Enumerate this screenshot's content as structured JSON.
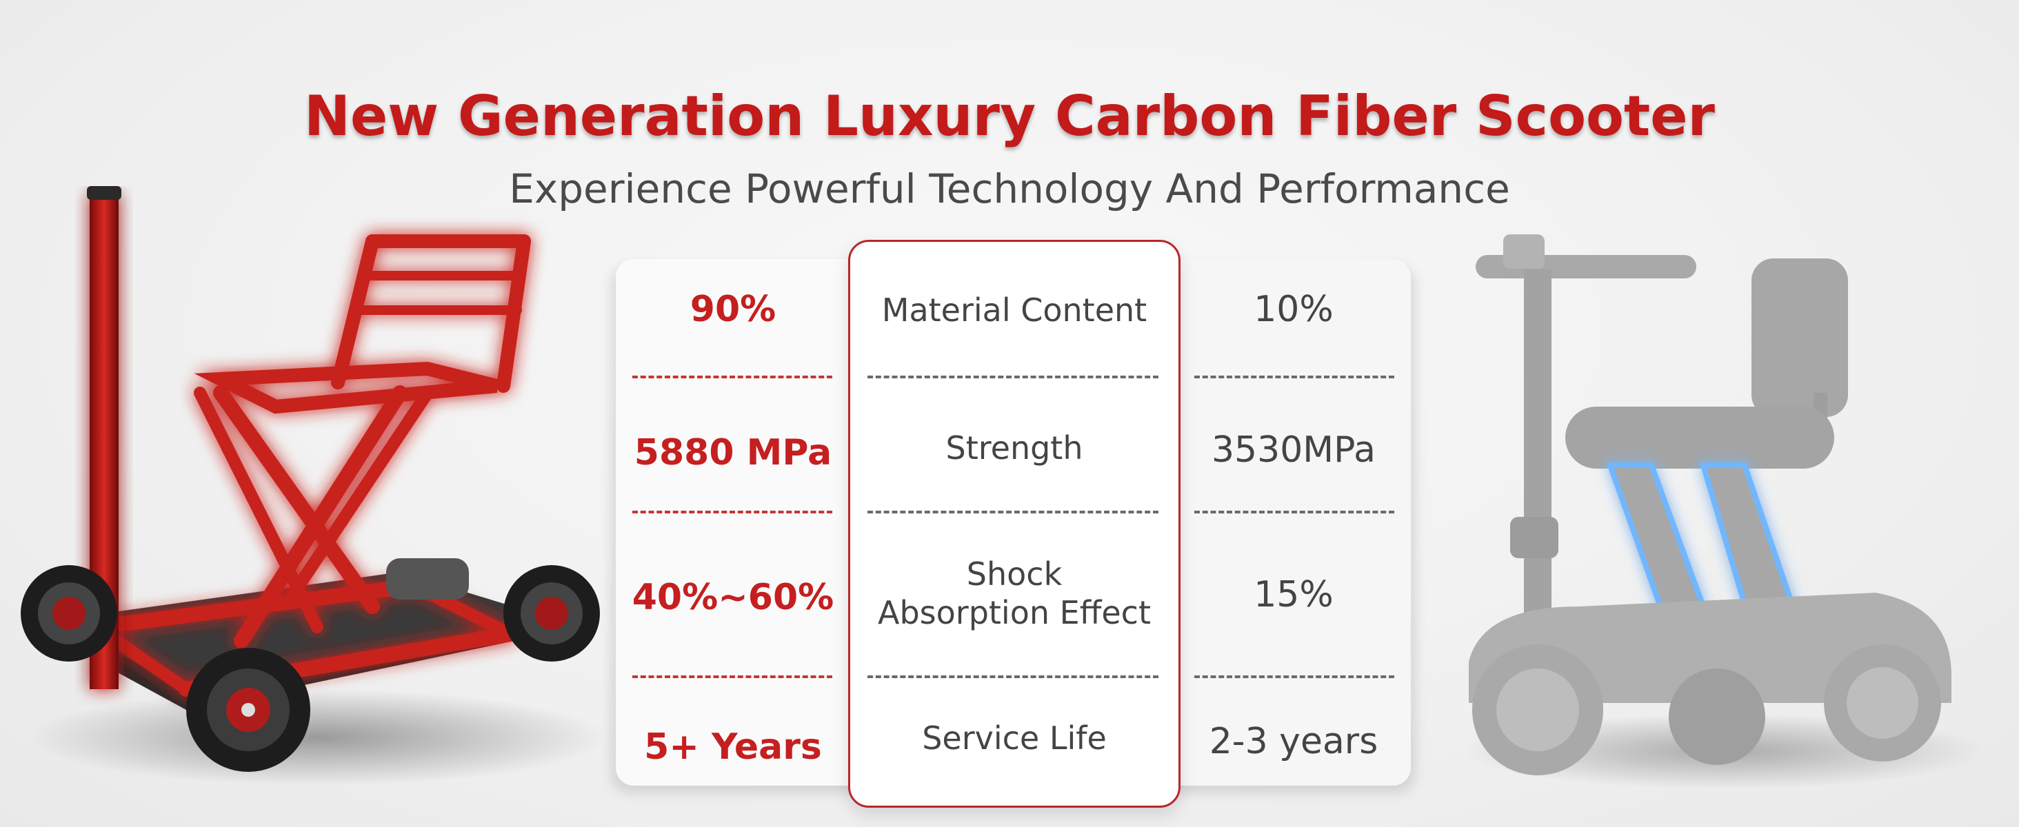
{
  "title": "New Generation Luxury Carbon Fiber Scooter",
  "subtitle": "Experience Powerful Technology And Performance",
  "colors": {
    "accent_red": "#c31a1a",
    "text_gray": "#444444",
    "highlight_blue": "#6fb7ff"
  },
  "comparison": {
    "rows": [
      {
        "carbon": "90%",
        "metric": "Material Content",
        "other": "10%"
      },
      {
        "carbon": "5880 MPa",
        "metric": "Strength",
        "other": "3530MPa"
      },
      {
        "carbon": "40%~60%",
        "metric": "Shock Absorption Effect",
        "other": "15%"
      },
      {
        "carbon": "5+ Years",
        "metric": "Service Life",
        "other": "2-3 years"
      }
    ]
  },
  "images": {
    "left": "red-carbon-fiber-scooter-frame",
    "right": "gray-scooter-silhouette"
  }
}
